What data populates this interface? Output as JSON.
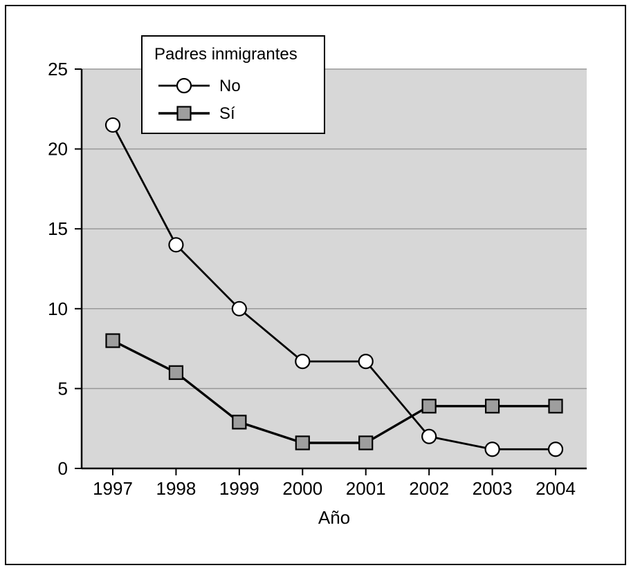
{
  "chart_data": {
    "type": "line",
    "title": "",
    "categories": [
      "1997",
      "1998",
      "1999",
      "2000",
      "2001",
      "2002",
      "2003",
      "2004"
    ],
    "series": [
      {
        "name": "No",
        "marker": "circle",
        "marker_fill": "#ffffff",
        "values": [
          21.5,
          14,
          10,
          6.7,
          6.7,
          2,
          1.2,
          1.2
        ]
      },
      {
        "name": "Sí",
        "marker": "square",
        "marker_fill": "#9e9e9e",
        "values": [
          8,
          6,
          2.9,
          1.6,
          1.6,
          3.9,
          3.9,
          3.9
        ]
      }
    ],
    "xlabel": "Año",
    "ylabel": "",
    "ylim": [
      0,
      25
    ],
    "yticks": [
      0,
      5,
      10,
      15,
      20,
      25
    ],
    "grid": true,
    "legend_title": "Padres inmigrantes",
    "legend_position": "top-left",
    "colors": {
      "plot_background": "#d7d7d7",
      "gridline": "#989898",
      "line": "#000000",
      "axis": "#000000",
      "legend_background": "#ffffff",
      "legend_border": "#000000",
      "frame_border": "#000000"
    }
  }
}
